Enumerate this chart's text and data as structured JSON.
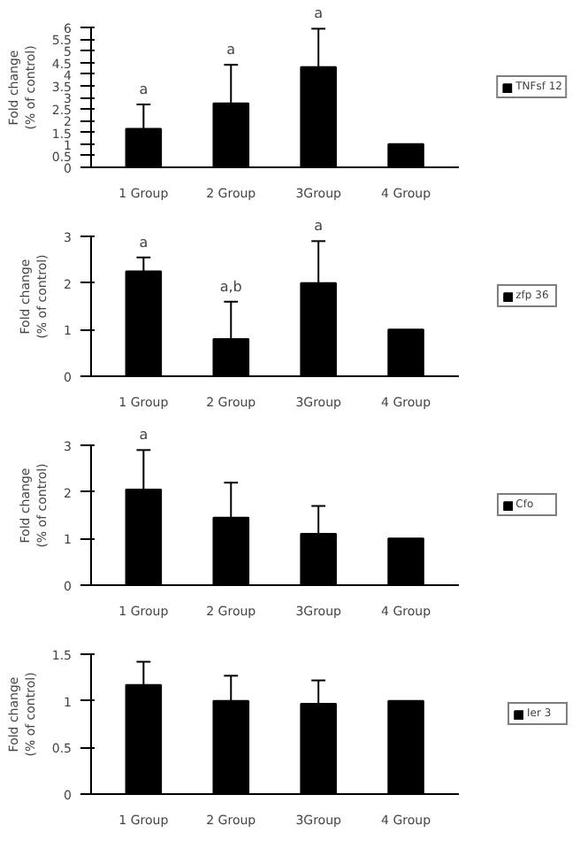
{
  "chart_data": [
    {
      "type": "bar",
      "ylabel": "Fold change\n(% of control)",
      "categories": [
        "1 Group",
        "2 Group",
        "3Group",
        "4 Group"
      ],
      "series": [
        {
          "name": "TNFsf 12",
          "color": "#000000",
          "values": [
            1.65,
            2.75,
            4.3,
            1.0
          ],
          "errors": [
            [
              1.65,
              2.7
            ],
            [
              2.75,
              4.4
            ],
            [
              4.3,
              5.95
            ],
            null
          ]
        }
      ],
      "ylim": [
        0,
        6
      ],
      "yticks": [
        0,
        0.5,
        1,
        1.5,
        2,
        2.5,
        3,
        3.5,
        4,
        4.5,
        5,
        5.5,
        6
      ],
      "grid": false,
      "legend": "right",
      "annotations": [
        {
          "text": "a",
          "x": "1 Group",
          "y": 2.7
        },
        {
          "text": "a",
          "x": "2 Group",
          "y": 4.4
        },
        {
          "text": "a",
          "x": "3Group",
          "y": 5.95
        }
      ]
    },
    {
      "type": "bar",
      "ylabel": "Fold change\n(% of control)",
      "categories": [
        "1 Group",
        "2 Group",
        "3Group",
        "4 Group"
      ],
      "series": [
        {
          "name": "zfp 36",
          "color": "#000000",
          "values": [
            2.25,
            0.8,
            2.0,
            1.0
          ],
          "errors": [
            [
              2.25,
              2.55
            ],
            [
              0.8,
              1.6
            ],
            [
              2.0,
              2.9
            ],
            null
          ]
        }
      ],
      "ylim": [
        0,
        3
      ],
      "yticks": [
        0,
        1,
        2,
        3
      ],
      "grid": false,
      "legend": "right",
      "annotations": [
        {
          "text": "a",
          "x": "1 Group",
          "y": 2.55
        },
        {
          "text": "a,b",
          "x": "2 Group",
          "y": 1.6
        },
        {
          "text": "a",
          "x": "3Group",
          "y": 2.9
        }
      ]
    },
    {
      "type": "bar",
      "ylabel": "Fold change\n(% of control)",
      "categories": [
        "1 Group",
        "2 Group",
        "3Group",
        "4 Group"
      ],
      "series": [
        {
          "name": "Cfo",
          "color": "#000000",
          "values": [
            2.05,
            1.45,
            1.1,
            1.0
          ],
          "errors": [
            [
              2.05,
              2.9
            ],
            [
              1.45,
              2.2
            ],
            [
              1.1,
              1.7
            ],
            null
          ]
        }
      ],
      "ylim": [
        0,
        3
      ],
      "yticks": [
        0,
        1,
        2,
        3
      ],
      "grid": false,
      "legend": "right",
      "annotations": [
        {
          "text": "a",
          "x": "1 Group",
          "y": 2.9
        }
      ]
    },
    {
      "type": "bar",
      "ylabel": "Fold change\n(% of control)",
      "categories": [
        "1 Group",
        "2 Group",
        "3Group",
        "4 Group"
      ],
      "series": [
        {
          "name": "Ier 3",
          "color": "#000000",
          "values": [
            1.17,
            1.0,
            0.97,
            1.0
          ],
          "errors": [
            [
              1.17,
              1.42
            ],
            [
              1.0,
              1.27
            ],
            [
              0.97,
              1.22
            ],
            null
          ]
        }
      ],
      "ylim": [
        0,
        1.5
      ],
      "yticks": [
        0,
        0.5,
        1,
        1.5
      ],
      "grid": false,
      "legend": "right"
    }
  ]
}
